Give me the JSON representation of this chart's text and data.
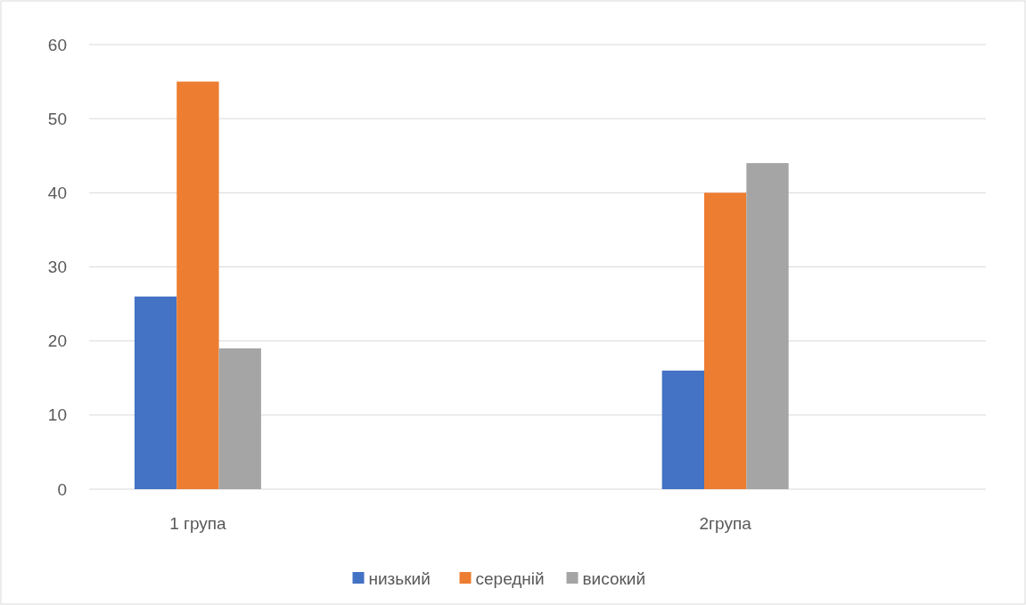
{
  "chart_data": {
    "type": "bar",
    "categories": [
      "1 група",
      "2група"
    ],
    "series": [
      {
        "name": "низький",
        "color": "#4472c4",
        "values": [
          26,
          16
        ]
      },
      {
        "name": "середній",
        "color": "#ed7d31",
        "values": [
          55,
          40
        ]
      },
      {
        "name": "високий",
        "color": "#a5a5a5",
        "values": [
          19,
          44
        ]
      }
    ],
    "ylim": [
      0,
      60
    ],
    "yticks": [
      0,
      10,
      20,
      30,
      40,
      50,
      60
    ],
    "grid": "y",
    "legend": "bottom"
  }
}
